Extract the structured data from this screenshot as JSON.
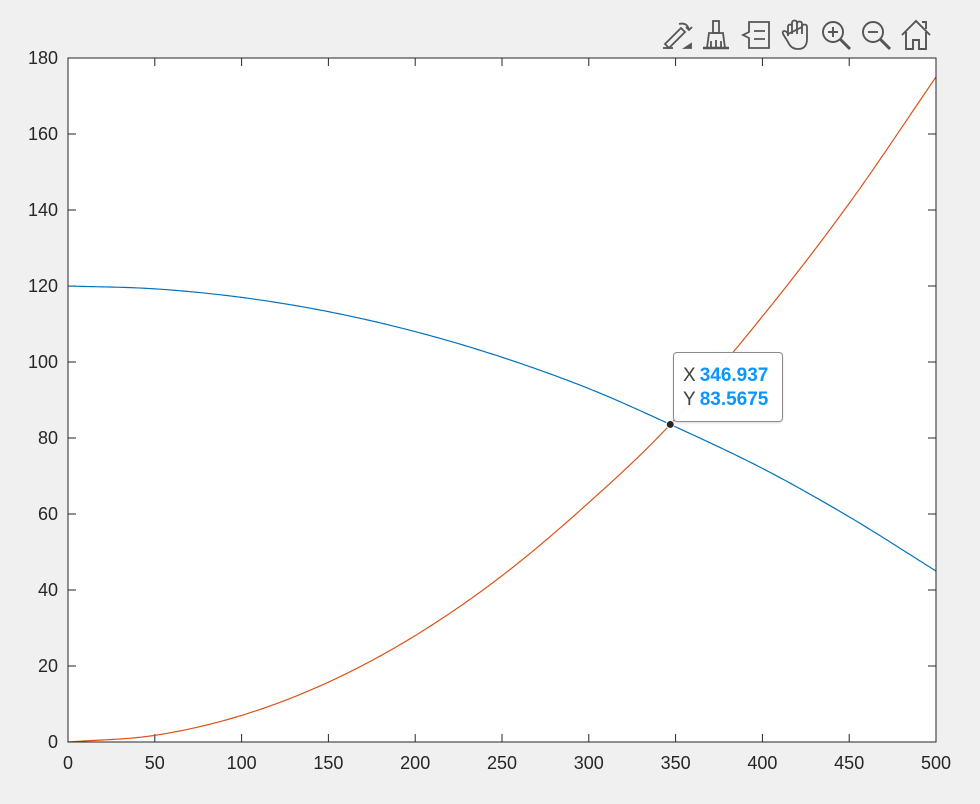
{
  "toolbar": {
    "buttons": [
      {
        "name": "edit-plot-icon"
      },
      {
        "name": "brush-icon"
      },
      {
        "name": "data-cursor-icon"
      },
      {
        "name": "pan-hand-icon"
      },
      {
        "name": "zoom-in-icon"
      },
      {
        "name": "zoom-out-icon"
      },
      {
        "name": "home-icon"
      }
    ]
  },
  "datatip": {
    "x_label": "X",
    "x_value": "346.937",
    "y_label": "Y",
    "y_value": "83.5675"
  },
  "chart_data": {
    "type": "line",
    "xlim": [
      0,
      500
    ],
    "ylim": [
      0,
      180
    ],
    "xticks": [
      0,
      50,
      100,
      150,
      200,
      250,
      300,
      350,
      400,
      450,
      500
    ],
    "yticks": [
      0,
      20,
      40,
      60,
      80,
      100,
      120,
      140,
      160,
      180
    ],
    "grid": false,
    "series": [
      {
        "color": "#0072bd",
        "x": [
          0,
          50,
          100,
          150,
          200,
          250,
          300,
          346.937,
          400,
          450,
          500
        ],
        "y": [
          120,
          119.25,
          117,
          113.25,
          108,
          101.25,
          93,
          83.5675,
          72,
          59.25,
          45
        ]
      },
      {
        "color": "#d95319",
        "x": [
          0,
          50,
          100,
          150,
          200,
          250,
          300,
          346.937,
          400,
          450,
          500
        ],
        "y": [
          0,
          1.75,
          7,
          15.75,
          28,
          43.75,
          63,
          83.5675,
          112,
          141.75,
          175
        ]
      }
    ],
    "datatip_point": {
      "x": 346.937,
      "y": 83.5675
    }
  }
}
